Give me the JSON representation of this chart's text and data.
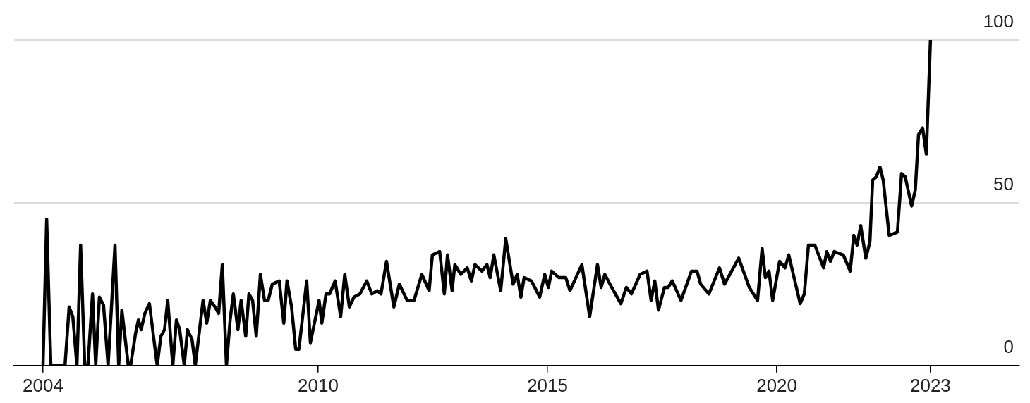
{
  "chart_data": {
    "type": "line",
    "x": [
      2004.0,
      2004.08,
      2004.17,
      2004.48,
      2004.57,
      2004.65,
      2004.74,
      2004.82,
      2004.91,
      2004.98,
      2005.08,
      2005.15,
      2005.23,
      2005.32,
      2005.42,
      2005.57,
      2005.65,
      2005.72,
      2005.86,
      2005.91,
      2006.02,
      2006.08,
      2006.14,
      2006.22,
      2006.32,
      2006.49,
      2006.57,
      2006.65,
      2006.72,
      2006.83,
      2006.91,
      2006.98,
      2007.08,
      2007.15,
      2007.25,
      2007.32,
      2007.49,
      2007.57,
      2007.65,
      2007.75,
      2007.83,
      2007.91,
      2008.0,
      2008.08,
      2008.15,
      2008.25,
      2008.32,
      2008.42,
      2008.49,
      2008.57,
      2008.65,
      2008.74,
      2008.83,
      2008.91,
      2009.0,
      2009.15,
      2009.25,
      2009.32,
      2009.42,
      2009.51,
      2009.58,
      2009.75,
      2009.83,
      2010.02,
      2010.08,
      2010.17,
      2010.25,
      2010.37,
      2010.49,
      2010.58,
      2010.68,
      2010.78,
      2010.91,
      2011.06,
      2011.17,
      2011.29,
      2011.37,
      2011.49,
      2011.65,
      2011.77,
      2011.94,
      2012.09,
      2012.26,
      2012.42,
      2012.49,
      2012.65,
      2012.75,
      2012.82,
      2012.92,
      2012.98,
      2013.11,
      2013.25,
      2013.34,
      2013.42,
      2013.57,
      2013.68,
      2013.75,
      2013.83,
      2013.98,
      2014.09,
      2014.25,
      2014.34,
      2014.42,
      2014.49,
      2014.65,
      2014.83,
      2014.94,
      2015.02,
      2015.09,
      2015.25,
      2015.4,
      2015.49,
      2015.75,
      2015.92,
      2016.09,
      2016.17,
      2016.25,
      2016.4,
      2016.6,
      2016.72,
      2016.83,
      2017.02,
      2017.17,
      2017.26,
      2017.34,
      2017.42,
      2017.55,
      2017.63,
      2017.72,
      2017.91,
      2018.14,
      2018.26,
      2018.34,
      2018.52,
      2018.75,
      2018.86,
      2019.17,
      2019.4,
      2019.58,
      2019.68,
      2019.75,
      2019.83,
      2019.91,
      2020.06,
      2020.18,
      2020.26,
      2020.51,
      2020.6,
      2020.69,
      2020.83,
      2021.02,
      2021.09,
      2021.17,
      2021.25,
      2021.45,
      2021.6,
      2021.68,
      2021.75,
      2021.83,
      2021.94,
      2022.03,
      2022.09,
      2022.17,
      2022.25,
      2022.32,
      2022.45,
      2022.63,
      2022.72,
      2022.8,
      2022.94,
      2023.02,
      2023.09,
      2023.18,
      2023.26,
      2023.35
    ],
    "series": [
      {
        "color": "#000000",
        "values": [
          0,
          45,
          0,
          0,
          18,
          15,
          0,
          37,
          0,
          0,
          22,
          0,
          21,
          18.5,
          0,
          37,
          0,
          17,
          0,
          0,
          10,
          14,
          11,
          16,
          19,
          0,
          9,
          11,
          20,
          0,
          14,
          11,
          0,
          11,
          8,
          0,
          20,
          13,
          20,
          18,
          16,
          31,
          0,
          14,
          22,
          11,
          20,
          9,
          22,
          20,
          9,
          28,
          20,
          20,
          25,
          26,
          13,
          26,
          18,
          5,
          5,
          26,
          7,
          20,
          13,
          22,
          22,
          26,
          15,
          28,
          18,
          21,
          22,
          26,
          22,
          23,
          22,
          32,
          18,
          25,
          20,
          20,
          28,
          23,
          34,
          35,
          22,
          34,
          23,
          31,
          28,
          30,
          26,
          31,
          29,
          31,
          27,
          34,
          23,
          39,
          25,
          28,
          21,
          27,
          26,
          21,
          28,
          24,
          29,
          27,
          27,
          23,
          31,
          15,
          31,
          24,
          28,
          24,
          19,
          24,
          22,
          28,
          29,
          20,
          26,
          17,
          24,
          24,
          26,
          20,
          29,
          29,
          25,
          22,
          30,
          25,
          33,
          24,
          20,
          36,
          27,
          29,
          20,
          32,
          30,
          34,
          19,
          22,
          37,
          37,
          30,
          35,
          32,
          35,
          34,
          29,
          40,
          37,
          43,
          33,
          38,
          57,
          58,
          61,
          57,
          40,
          41,
          59,
          58,
          49,
          54,
          71,
          73,
          65,
          100
        ]
      }
    ],
    "xlim": [
      2003.37,
      2025.29
    ],
    "xticks": [
      2004,
      2010,
      2015,
      2020,
      {
        "value": 2023.35,
        "label": "2023"
      }
    ],
    "ylim": [
      0,
      100
    ],
    "yticks": [
      0,
      50,
      100
    ],
    "grid": "y",
    "legend": false,
    "marker": "none",
    "line_style": "solid"
  }
}
